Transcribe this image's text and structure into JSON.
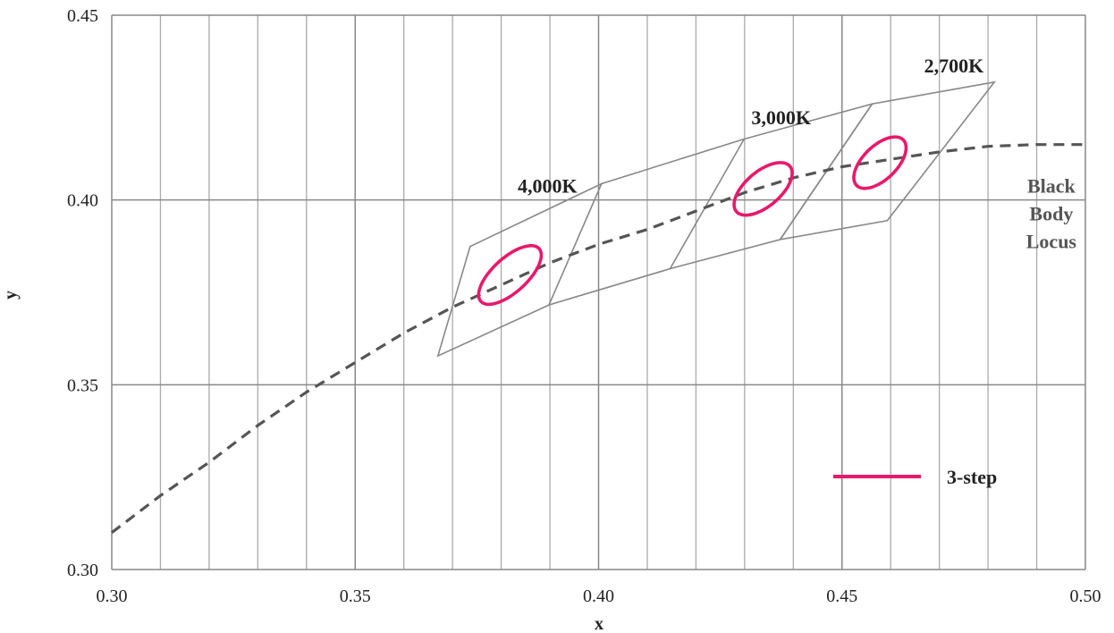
{
  "chart_data": {
    "type": "line",
    "xlabel": "x",
    "ylabel": "y",
    "xlim": [
      0.3,
      0.5
    ],
    "ylim": [
      0.3,
      0.45
    ],
    "x_ticks": [
      "0.30",
      "0.35",
      "0.40",
      "0.45",
      "0.50"
    ],
    "y_ticks": [
      "0.30",
      "0.35",
      "0.40",
      "0.45"
    ],
    "x_minor_gridlines": [
      0.31,
      0.32,
      0.33,
      0.34,
      0.36,
      0.37,
      0.38,
      0.39,
      0.41,
      0.42,
      0.43,
      0.44,
      0.46,
      0.47,
      0.48,
      0.49
    ],
    "grid": true,
    "legend_position": "lower-right",
    "legend": [
      {
        "label": "3-step",
        "color": "#e8196b"
      }
    ],
    "colors": {
      "locus": "#555555",
      "quadrangle": "#888888",
      "ellipse": "#e8196b",
      "major_grid": "#888888",
      "minor_grid": "#aaaaaa"
    },
    "blackbody_locus": {
      "style": "dashed",
      "points": [
        [
          0.3,
          0.31
        ],
        [
          0.31,
          0.32
        ],
        [
          0.32,
          0.329
        ],
        [
          0.33,
          0.339
        ],
        [
          0.34,
          0.348
        ],
        [
          0.35,
          0.356
        ],
        [
          0.36,
          0.364
        ],
        [
          0.37,
          0.371
        ],
        [
          0.38,
          0.377
        ],
        [
          0.39,
          0.383
        ],
        [
          0.4,
          0.388
        ],
        [
          0.41,
          0.392
        ],
        [
          0.42,
          0.397
        ],
        [
          0.43,
          0.402
        ],
        [
          0.44,
          0.406
        ],
        [
          0.45,
          0.409
        ],
        [
          0.46,
          0.411
        ],
        [
          0.47,
          0.413
        ],
        [
          0.48,
          0.4145
        ],
        [
          0.49,
          0.415
        ],
        [
          0.5,
          0.415
        ]
      ]
    },
    "quadrangles": [
      {
        "name": "4,000K",
        "points": [
          [
            0.3736,
            0.3874
          ],
          [
            0.4006,
            0.4044
          ],
          [
            0.3898,
            0.3716
          ],
          [
            0.367,
            0.3578
          ]
        ]
      },
      {
        "name": "3,000K",
        "points": [
          [
            0.4147,
            0.3814
          ],
          [
            0.4299,
            0.4165
          ],
          [
            0.4562,
            0.426
          ],
          [
            0.4373,
            0.3893
          ]
        ]
      },
      {
        "name": "2,700K",
        "points": [
          [
            0.4373,
            0.3893
          ],
          [
            0.4562,
            0.426
          ],
          [
            0.4813,
            0.4319
          ],
          [
            0.4593,
            0.3944
          ]
        ]
      }
    ],
    "bottom_edge_extra": [
      [
        0.3898,
        0.3716
      ],
      [
        0.4147,
        0.3814
      ]
    ],
    "top_edge_extra": [
      [
        0.4006,
        0.4044
      ],
      [
        0.4299,
        0.4165
      ]
    ],
    "ellipses": [
      {
        "cx": 0.3818,
        "cy": 0.3797,
        "a": 0.0094,
        "b": 0.004,
        "angle_deg": 53.7
      },
      {
        "cx": 0.4338,
        "cy": 0.403,
        "a": 0.00834,
        "b": 0.00408,
        "angle_deg": 53.2
      },
      {
        "cx": 0.4578,
        "cy": 0.4101,
        "a": 0.0079,
        "b": 0.00386,
        "angle_deg": 57.2
      }
    ],
    "annotations": [
      {
        "text": "4,000K",
        "x": 0.3895,
        "y": 0.402,
        "style": "dark"
      },
      {
        "text": "3,000K",
        "x": 0.4375,
        "y": 0.4205,
        "style": "dark"
      },
      {
        "text": "2,700K",
        "x": 0.473,
        "y": 0.4345,
        "style": "dark"
      },
      {
        "text": "Black",
        "x": 0.493,
        "y": 0.402,
        "style": "grey"
      },
      {
        "text": "Body",
        "x": 0.493,
        "y": 0.3945,
        "style": "grey"
      },
      {
        "text": "Locus",
        "x": 0.493,
        "y": 0.387,
        "style": "grey"
      }
    ]
  }
}
